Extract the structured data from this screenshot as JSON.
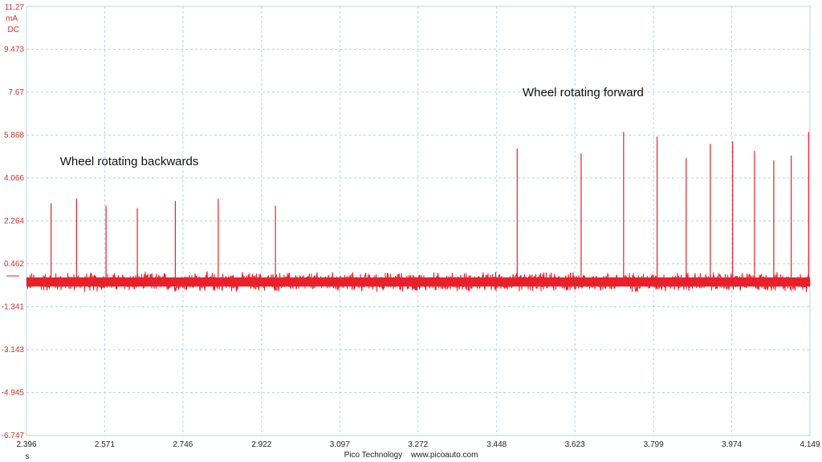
{
  "chart_data": {
    "type": "line",
    "y_unit": "mA",
    "y_coupling": "DC",
    "x_unit": "s",
    "ylim": [
      -6.747,
      11.27
    ],
    "xlim": [
      2.396,
      4.149
    ],
    "y_ticks": [
      "11.27",
      "9.473",
      "7.67",
      "5.868",
      "4.066",
      "2.264",
      "0.462",
      "-1.341",
      "-3.143",
      "-4.945",
      "-6.747"
    ],
    "x_ticks": [
      "2.396",
      "2.571",
      "2.746",
      "2.922",
      "3.097",
      "3.272",
      "3.448",
      "3.623",
      "3.799",
      "3.974",
      "4.149"
    ],
    "grid": true,
    "series_color": "#e8202a",
    "baseline_level": -0.3,
    "noise_amplitude": 0.35,
    "series": [
      {
        "values_description_free": true,
        "spikes": [
          {
            "x": 2.451,
            "y": 3.0
          },
          {
            "x": 2.508,
            "y": 3.2
          },
          {
            "x": 2.574,
            "y": 2.9
          },
          {
            "x": 2.644,
            "y": 2.8
          },
          {
            "x": 2.729,
            "y": 3.1
          },
          {
            "x": 2.825,
            "y": 3.2
          },
          {
            "x": 2.953,
            "y": 2.9
          },
          {
            "x": 3.494,
            "y": 5.3
          },
          {
            "x": 3.637,
            "y": 5.1
          },
          {
            "x": 3.732,
            "y": 6.0
          },
          {
            "x": 3.807,
            "y": 5.8
          },
          {
            "x": 3.872,
            "y": 4.9
          },
          {
            "x": 3.926,
            "y": 5.5
          },
          {
            "x": 3.976,
            "y": 5.6
          },
          {
            "x": 4.025,
            "y": 5.2
          },
          {
            "x": 4.068,
            "y": 4.8
          },
          {
            "x": 4.107,
            "y": 5.0
          },
          {
            "x": 4.146,
            "y": 6.0
          }
        ]
      }
    ],
    "annotations": [
      {
        "text": "Wheel rotating backwards",
        "x": 2.471,
        "y": 4.6
      },
      {
        "text": "Wheel rotating forward",
        "x": 3.506,
        "y": 7.5
      }
    ]
  },
  "footer": {
    "brand": "Pico Technology",
    "website": "www.picoauto.com"
  }
}
